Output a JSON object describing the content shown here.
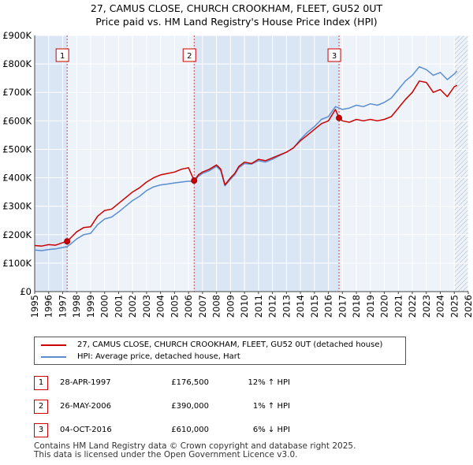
{
  "title_line1": "27, CAMUS CLOSE, CHURCH CROOKHAM, FLEET, GU52 0UT",
  "title_line2": "Price paid vs. HM Land Registry's House Price Index (HPI)",
  "colors": {
    "property": "#cc0000",
    "hpi": "#5a8ed0",
    "shade": "#dbe6f5",
    "grid": "#ffffff"
  },
  "chart_data": {
    "type": "line",
    "xlim": [
      1995,
      2026
    ],
    "ylim": [
      0,
      900000
    ],
    "x_ticks": [
      1995,
      1996,
      1997,
      1998,
      1999,
      2000,
      2001,
      2002,
      2003,
      2004,
      2005,
      2006,
      2007,
      2008,
      2009,
      2010,
      2011,
      2012,
      2013,
      2014,
      2015,
      2016,
      2017,
      2018,
      2019,
      2020,
      2021,
      2022,
      2023,
      2024,
      2025,
      2026
    ],
    "y_ticks": [
      {
        "value": 0,
        "label": "£0"
      },
      {
        "value": 100000,
        "label": "£100K"
      },
      {
        "value": 200000,
        "label": "£200K"
      },
      {
        "value": 300000,
        "label": "£300K"
      },
      {
        "value": 400000,
        "label": "£400K"
      },
      {
        "value": 500000,
        "label": "£500K"
      },
      {
        "value": 600000,
        "label": "£600K"
      },
      {
        "value": 700000,
        "label": "£700K"
      },
      {
        "value": 800000,
        "label": "£800K"
      },
      {
        "value": 900000,
        "label": "£900K"
      }
    ],
    "shade_ranges": [
      [
        1995,
        1997.32
      ],
      [
        2006.4,
        2016.76
      ]
    ],
    "hatch_from": 2025.0,
    "series": [
      {
        "name": "27, CAMUS CLOSE, CHURCH CROOKHAM, FLEET, GU52 0UT (detached house)",
        "x": [
          1995.0,
          1995.5,
          1996.0,
          1996.5,
          1997.0,
          1997.32,
          1997.6,
          1998.0,
          1998.5,
          1999.0,
          1999.5,
          2000.0,
          2000.5,
          2001.0,
          2001.5,
          2002.0,
          2002.5,
          2003.0,
          2003.5,
          2004.0,
          2004.5,
          2005.0,
          2005.5,
          2006.0,
          2006.4,
          2006.7,
          2007.0,
          2007.5,
          2008.0,
          2008.3,
          2008.6,
          2009.0,
          2009.3,
          2009.6,
          2010.0,
          2010.5,
          2011.0,
          2011.5,
          2012.0,
          2012.5,
          2013.0,
          2013.5,
          2014.0,
          2014.5,
          2015.0,
          2015.5,
          2016.0,
          2016.5,
          2016.76,
          2017.0,
          2017.5,
          2018.0,
          2018.5,
          2019.0,
          2019.5,
          2020.0,
          2020.5,
          2021.0,
          2021.5,
          2022.0,
          2022.5,
          2023.0,
          2023.5,
          2024.0,
          2024.5,
          2025.0,
          2025.2
        ],
        "values": [
          162000,
          160000,
          165000,
          163000,
          172000,
          176500,
          190000,
          210000,
          225000,
          228000,
          265000,
          285000,
          290000,
          310000,
          330000,
          350000,
          365000,
          385000,
          400000,
          410000,
          415000,
          420000,
          430000,
          435000,
          390000,
          410000,
          420000,
          430000,
          445000,
          430000,
          375000,
          400000,
          415000,
          440000,
          455000,
          450000,
          465000,
          460000,
          470000,
          480000,
          490000,
          505000,
          530000,
          550000,
          570000,
          590000,
          600000,
          640000,
          610000,
          600000,
          595000,
          605000,
          600000,
          605000,
          600000,
          605000,
          615000,
          645000,
          675000,
          700000,
          740000,
          735000,
          700000,
          710000,
          685000,
          720000,
          725000
        ]
      },
      {
        "name": "HPI: Average price, detached house, Hart",
        "x": [
          1995.0,
          1995.5,
          1996.0,
          1996.5,
          1997.0,
          1997.32,
          1997.6,
          1998.0,
          1998.5,
          1999.0,
          1999.5,
          2000.0,
          2000.5,
          2001.0,
          2001.5,
          2002.0,
          2002.5,
          2003.0,
          2003.5,
          2004.0,
          2004.5,
          2005.0,
          2005.5,
          2006.0,
          2006.4,
          2006.7,
          2007.0,
          2007.5,
          2008.0,
          2008.3,
          2008.6,
          2009.0,
          2009.3,
          2009.6,
          2010.0,
          2010.5,
          2011.0,
          2011.5,
          2012.0,
          2012.5,
          2013.0,
          2013.5,
          2014.0,
          2014.5,
          2015.0,
          2015.5,
          2016.0,
          2016.5,
          2016.76,
          2017.0,
          2017.5,
          2018.0,
          2018.5,
          2019.0,
          2019.5,
          2020.0,
          2020.5,
          2021.0,
          2021.5,
          2022.0,
          2022.5,
          2023.0,
          2023.5,
          2024.0,
          2024.5,
          2025.0,
          2025.2
        ],
        "values": [
          146000,
          144000,
          148000,
          150000,
          155000,
          158000,
          168000,
          185000,
          200000,
          205000,
          235000,
          255000,
          262000,
          280000,
          300000,
          320000,
          335000,
          355000,
          368000,
          375000,
          378000,
          382000,
          385000,
          388000,
          386000,
          405000,
          415000,
          425000,
          440000,
          425000,
          372000,
          395000,
          410000,
          435000,
          450000,
          448000,
          460000,
          455000,
          465000,
          478000,
          490000,
          505000,
          535000,
          560000,
          580000,
          605000,
          615000,
          650000,
          645000,
          640000,
          645000,
          655000,
          650000,
          660000,
          655000,
          665000,
          680000,
          710000,
          740000,
          760000,
          790000,
          780000,
          760000,
          770000,
          745000,
          765000,
          775000
        ]
      }
    ],
    "markers": [
      {
        "label": "1",
        "x": 1997.32,
        "y": 176500
      },
      {
        "label": "2",
        "x": 2006.4,
        "y": 390000
      },
      {
        "label": "3",
        "x": 2016.76,
        "y": 610000
      }
    ]
  },
  "legend": {
    "property_label": "27, CAMUS CLOSE, CHURCH CROOKHAM, FLEET, GU52 0UT (detached house)",
    "hpi_label": "HPI: Average price, detached house, Hart"
  },
  "sales": [
    {
      "num": "1",
      "date": "28-APR-1997",
      "price": "£176,500",
      "hpi": "12% ↑ HPI"
    },
    {
      "num": "2",
      "date": "26-MAY-2006",
      "price": "£390,000",
      "hpi": "1% ↑ HPI"
    },
    {
      "num": "3",
      "date": "04-OCT-2016",
      "price": "£610,000",
      "hpi": "6% ↓ HPI"
    }
  ],
  "footer_line1": "Contains HM Land Registry data © Crown copyright and database right 2025.",
  "footer_line2": "This data is licensed under the Open Government Licence v3.0."
}
